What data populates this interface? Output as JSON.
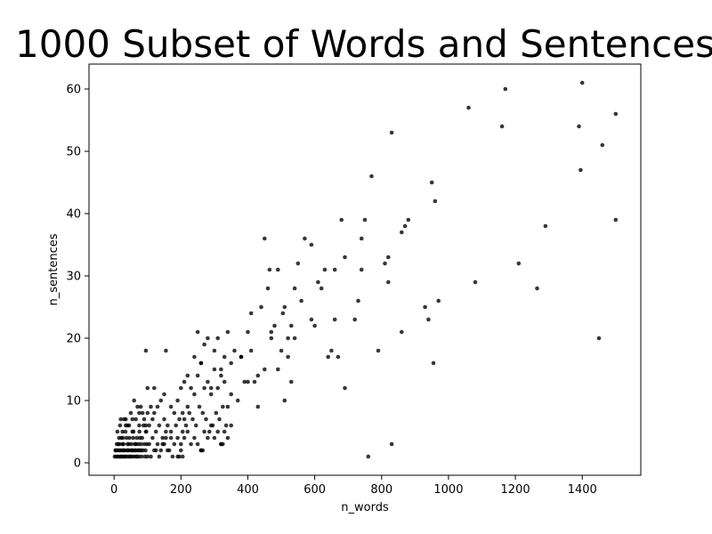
{
  "chart_data": {
    "type": "scatter",
    "title": "1000 Subset of Words and Sentences",
    "xlabel": "n_words",
    "ylabel": "n_sentences",
    "xlim": [
      -75,
      1575
    ],
    "ylim": [
      -2,
      64
    ],
    "x_ticks": [
      0,
      200,
      400,
      600,
      800,
      1000,
      1200,
      1400
    ],
    "y_ticks": [
      0,
      10,
      20,
      30,
      40,
      50,
      60
    ],
    "grid": false,
    "marker_color": "#000000",
    "points": [
      [
        2,
        1
      ],
      [
        4,
        2
      ],
      [
        6,
        1
      ],
      [
        8,
        3
      ],
      [
        10,
        2
      ],
      [
        12,
        1
      ],
      [
        14,
        2
      ],
      [
        16,
        3
      ],
      [
        18,
        1
      ],
      [
        20,
        2
      ],
      [
        22,
        4
      ],
      [
        24,
        1
      ],
      [
        26,
        2
      ],
      [
        28,
        3
      ],
      [
        30,
        1
      ],
      [
        32,
        2
      ],
      [
        34,
        5
      ],
      [
        36,
        1
      ],
      [
        38,
        2
      ],
      [
        40,
        3
      ],
      [
        42,
        1
      ],
      [
        44,
        2
      ],
      [
        46,
        4
      ],
      [
        48,
        1
      ],
      [
        50,
        2
      ],
      [
        52,
        3
      ],
      [
        54,
        1
      ],
      [
        56,
        2
      ],
      [
        58,
        5
      ],
      [
        60,
        1
      ],
      [
        62,
        3
      ],
      [
        64,
        2
      ],
      [
        66,
        1
      ],
      [
        68,
        4
      ],
      [
        70,
        2
      ],
      [
        72,
        3
      ],
      [
        74,
        1
      ],
      [
        76,
        5
      ],
      [
        78,
        2
      ],
      [
        80,
        3
      ],
      [
        82,
        1
      ],
      [
        84,
        4
      ],
      [
        86,
        2
      ],
      [
        88,
        6
      ],
      [
        90,
        3
      ],
      [
        92,
        1
      ],
      [
        94,
        2
      ],
      [
        96,
        5
      ],
      [
        98,
        3
      ],
      [
        100,
        1
      ],
      [
        5,
        2
      ],
      [
        9,
        1
      ],
      [
        13,
        3
      ],
      [
        17,
        2
      ],
      [
        21,
        1
      ],
      [
        25,
        3
      ],
      [
        29,
        2
      ],
      [
        33,
        1
      ],
      [
        37,
        4
      ],
      [
        41,
        2
      ],
      [
        45,
        3
      ],
      [
        49,
        1
      ],
      [
        53,
        2
      ],
      [
        57,
        4
      ],
      [
        61,
        2
      ],
      [
        65,
        3
      ],
      [
        69,
        1
      ],
      [
        73,
        2
      ],
      [
        77,
        4
      ],
      [
        81,
        2
      ],
      [
        10,
        5
      ],
      [
        18,
        6
      ],
      [
        26,
        4
      ],
      [
        35,
        7
      ],
      [
        45,
        6
      ],
      [
        55,
        5
      ],
      [
        65,
        7
      ],
      [
        75,
        6
      ],
      [
        85,
        8
      ],
      [
        95,
        6
      ],
      [
        30,
        7
      ],
      [
        50,
        8
      ],
      [
        70,
        9
      ],
      [
        90,
        7
      ],
      [
        60,
        10
      ],
      [
        80,
        9
      ],
      [
        100,
        8
      ],
      [
        40,
        6
      ],
      [
        20,
        7
      ],
      [
        110,
        9
      ],
      [
        15,
        4
      ],
      [
        25,
        5
      ],
      [
        35,
        6
      ],
      [
        55,
        7
      ],
      [
        75,
        8
      ],
      [
        95,
        5
      ],
      [
        105,
        6
      ],
      [
        115,
        7
      ],
      [
        125,
        5
      ],
      [
        135,
        6
      ],
      [
        145,
        4
      ],
      [
        155,
        5
      ],
      [
        120,
        8
      ],
      [
        130,
        9
      ],
      [
        140,
        10
      ],
      [
        150,
        7
      ],
      [
        160,
        6
      ],
      [
        170,
        5
      ],
      [
        110,
        1
      ],
      [
        120,
        2
      ],
      [
        130,
        3
      ],
      [
        140,
        2
      ],
      [
        150,
        3
      ],
      [
        160,
        2
      ],
      [
        170,
        4
      ],
      [
        180,
        3
      ],
      [
        190,
        1
      ],
      [
        200,
        2
      ],
      [
        105,
        3
      ],
      [
        115,
        4
      ],
      [
        125,
        2
      ],
      [
        135,
        1
      ],
      [
        145,
        3
      ],
      [
        155,
        4
      ],
      [
        165,
        2
      ],
      [
        175,
        1
      ],
      [
        100,
        12
      ],
      [
        95,
        18
      ],
      [
        120,
        12
      ],
      [
        150,
        11
      ],
      [
        155,
        18
      ],
      [
        170,
        9
      ],
      [
        180,
        8
      ],
      [
        190,
        10
      ],
      [
        200,
        12
      ],
      [
        205,
        8
      ],
      [
        210,
        7
      ],
      [
        220,
        9
      ],
      [
        230,
        12
      ],
      [
        240,
        11
      ],
      [
        250,
        14
      ],
      [
        260,
        16
      ],
      [
        185,
        6
      ],
      [
        195,
        7
      ],
      [
        205,
        5
      ],
      [
        215,
        6
      ],
      [
        225,
        8
      ],
      [
        235,
        7
      ],
      [
        245,
        6
      ],
      [
        255,
        9
      ],
      [
        265,
        8
      ],
      [
        275,
        7
      ],
      [
        285,
        5
      ],
      [
        295,
        6
      ],
      [
        305,
        8
      ],
      [
        315,
        7
      ],
      [
        325,
        9
      ],
      [
        335,
        6
      ],
      [
        190,
        4
      ],
      [
        200,
        3
      ],
      [
        210,
        4
      ],
      [
        220,
        5
      ],
      [
        230,
        3
      ],
      [
        240,
        4
      ],
      [
        250,
        3
      ],
      [
        260,
        2
      ],
      [
        270,
        5
      ],
      [
        280,
        4
      ],
      [
        290,
        6
      ],
      [
        300,
        4
      ],
      [
        310,
        5
      ],
      [
        320,
        3
      ],
      [
        330,
        5
      ],
      [
        340,
        4
      ],
      [
        350,
        6
      ],
      [
        195,
        1
      ],
      [
        205,
        1
      ],
      [
        260,
        2
      ],
      [
        265,
        2
      ],
      [
        320,
        3
      ],
      [
        325,
        3
      ],
      [
        210,
        13
      ],
      [
        220,
        14
      ],
      [
        240,
        17
      ],
      [
        250,
        21
      ],
      [
        260,
        16
      ],
      [
        270,
        19
      ],
      [
        280,
        20
      ],
      [
        290,
        12
      ],
      [
        300,
        18
      ],
      [
        310,
        20
      ],
      [
        320,
        15
      ],
      [
        330,
        17
      ],
      [
        340,
        21
      ],
      [
        350,
        16
      ],
      [
        360,
        18
      ],
      [
        270,
        12
      ],
      [
        280,
        13
      ],
      [
        290,
        11
      ],
      [
        300,
        15
      ],
      [
        310,
        12
      ],
      [
        320,
        14
      ],
      [
        330,
        13
      ],
      [
        340,
        9
      ],
      [
        350,
        11
      ],
      [
        370,
        10
      ],
      [
        380,
        17
      ],
      [
        390,
        13
      ],
      [
        400,
        21
      ],
      [
        410,
        18
      ],
      [
        420,
        13
      ],
      [
        380,
        17
      ],
      [
        400,
        13
      ],
      [
        410,
        24
      ],
      [
        430,
        9
      ],
      [
        430,
        14
      ],
      [
        440,
        25
      ],
      [
        450,
        15
      ],
      [
        450,
        36
      ],
      [
        460,
        28
      ],
      [
        465,
        31
      ],
      [
        470,
        21
      ],
      [
        470,
        20
      ],
      [
        480,
        22
      ],
      [
        490,
        15
      ],
      [
        490,
        31
      ],
      [
        500,
        18
      ],
      [
        505,
        24
      ],
      [
        510,
        25
      ],
      [
        510,
        10
      ],
      [
        520,
        17
      ],
      [
        520,
        20
      ],
      [
        530,
        22
      ],
      [
        530,
        13
      ],
      [
        540,
        28
      ],
      [
        540,
        20
      ],
      [
        550,
        32
      ],
      [
        560,
        26
      ],
      [
        570,
        36
      ],
      [
        590,
        35
      ],
      [
        590,
        23
      ],
      [
        600,
        22
      ],
      [
        610,
        29
      ],
      [
        620,
        28
      ],
      [
        630,
        31
      ],
      [
        640,
        17
      ],
      [
        650,
        18
      ],
      [
        660,
        31
      ],
      [
        660,
        23
      ],
      [
        670,
        17
      ],
      [
        680,
        39
      ],
      [
        690,
        33
      ],
      [
        690,
        12
      ],
      [
        720,
        23
      ],
      [
        730,
        26
      ],
      [
        740,
        31
      ],
      [
        740,
        36
      ],
      [
        750,
        39
      ],
      [
        760,
        1
      ],
      [
        770,
        46
      ],
      [
        790,
        18
      ],
      [
        810,
        32
      ],
      [
        820,
        29
      ],
      [
        820,
        33
      ],
      [
        830,
        3
      ],
      [
        830,
        53
      ],
      [
        860,
        37
      ],
      [
        860,
        21
      ],
      [
        870,
        38
      ],
      [
        880,
        39
      ],
      [
        930,
        25
      ],
      [
        940,
        23
      ],
      [
        950,
        45
      ],
      [
        955,
        16
      ],
      [
        960,
        42
      ],
      [
        970,
        26
      ],
      [
        1060,
        57
      ],
      [
        1080,
        29
      ],
      [
        1160,
        54
      ],
      [
        1170,
        60
      ],
      [
        1210,
        32
      ],
      [
        1265,
        28
      ],
      [
        1290,
        38
      ],
      [
        1390,
        54
      ],
      [
        1395,
        47
      ],
      [
        1400,
        61
      ],
      [
        1450,
        20
      ],
      [
        1460,
        51
      ],
      [
        1500,
        56
      ],
      [
        1500,
        39
      ]
    ]
  }
}
